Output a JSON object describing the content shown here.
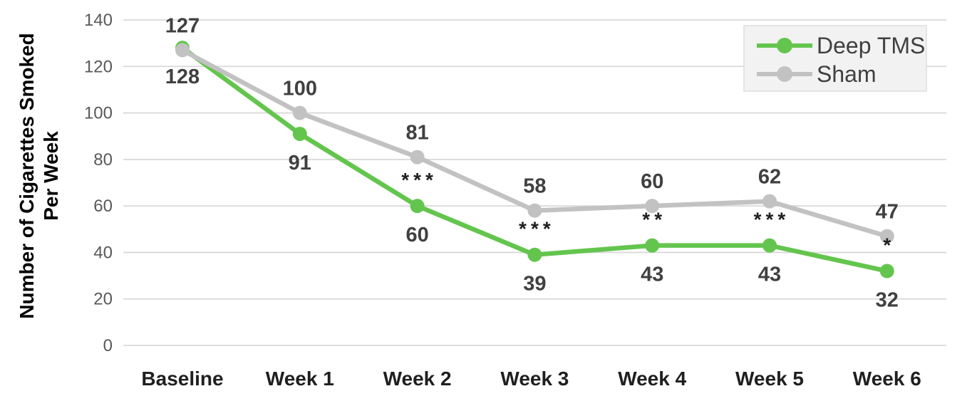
{
  "chart_data": {
    "type": "line",
    "title": "",
    "ylabel_lines": [
      "Number of Cigarettes Smoked",
      "Per Week"
    ],
    "categories": [
      "Baseline",
      "Week 1",
      "Week 2",
      "Week 3",
      "Week 4",
      "Week 5",
      "Week 6"
    ],
    "y_ticks": [
      0,
      20,
      40,
      60,
      80,
      100,
      120,
      140
    ],
    "ylim": [
      0,
      140
    ],
    "grid": "horizontal",
    "legend_position": "top-right",
    "series": [
      {
        "name": "Deep TMS",
        "color": "#64c54e",
        "values": [
          128,
          91,
          60,
          39,
          43,
          43,
          32
        ],
        "label_position": "below"
      },
      {
        "name": "Sham",
        "color": "#c2c2c2",
        "values": [
          127,
          100,
          81,
          58,
          60,
          62,
          47
        ],
        "label_position": "above"
      }
    ],
    "significance": [
      "",
      "",
      "***",
      "***",
      "**",
      "***",
      "*"
    ],
    "colors": {
      "grid": "#d9d9d9",
      "tick_text": "#595959",
      "axis_text": "#1f1f1f",
      "data_label_text": "#404040",
      "significance_text": "#1f1f1f",
      "legend_fill": "#f2f2f2",
      "legend_border": "#dddddd"
    }
  }
}
